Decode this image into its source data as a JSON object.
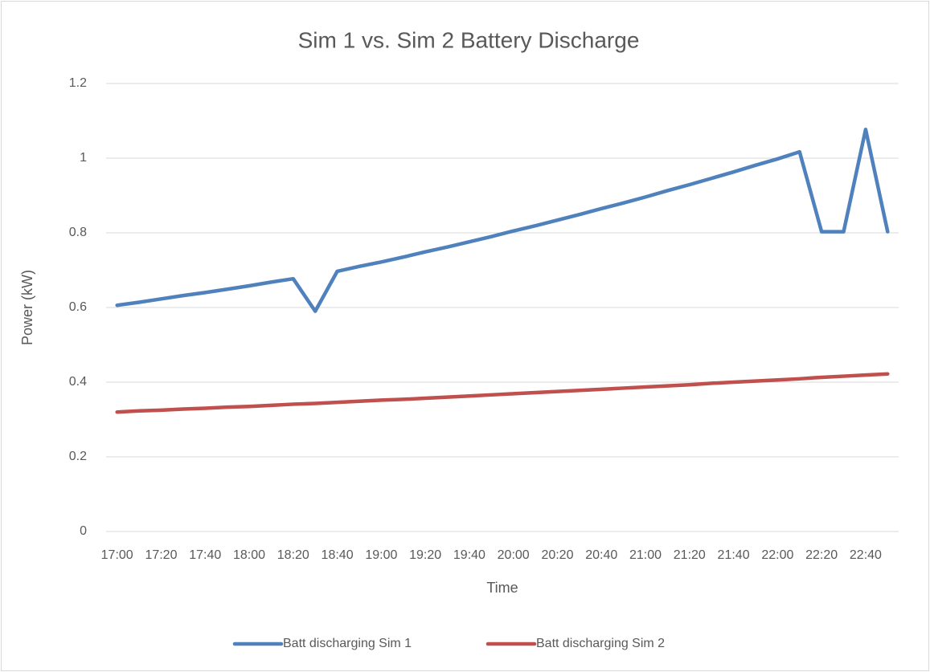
{
  "chart_data": {
    "type": "line",
    "title": "Sim 1 vs. Sim 2 Battery Discharge",
    "x_label": "Time",
    "y_label": "Power (kW)",
    "categories": [
      "17:00",
      null,
      "17:20",
      null,
      "17:40",
      null,
      "18:00",
      null,
      "18:20",
      null,
      "18:40",
      null,
      "19:00",
      null,
      "19:20",
      null,
      "19:40",
      null,
      "20:00",
      null,
      "20:20",
      null,
      "20:40",
      null,
      "21:00",
      null,
      "21:20",
      null,
      "21:40",
      null,
      "22:00",
      null,
      "22:20",
      null,
      "22:40",
      null
    ],
    "series": [
      {
        "name": "Batt discharging Sim 1",
        "color": "#4f81bd",
        "values": [
          0.606,
          0.614,
          0.623,
          0.632,
          0.64,
          0.649,
          0.658,
          0.668,
          0.677,
          0.59,
          0.697,
          0.71,
          0.722,
          0.735,
          0.749,
          0.762,
          0.776,
          0.79,
          0.805,
          0.819,
          0.834,
          0.849,
          0.865,
          0.88,
          0.896,
          0.913,
          0.929,
          0.946,
          0.963,
          0.981,
          0.998,
          1.017,
          0.803,
          0.803,
          1.077,
          0.803
        ]
      },
      {
        "name": "Batt discharging Sim 2",
        "color": "#c0504d",
        "values": [
          0.32,
          0.323,
          0.325,
          0.328,
          0.33,
          0.333,
          0.335,
          0.338,
          0.341,
          0.343,
          0.346,
          0.349,
          0.352,
          0.354,
          0.357,
          0.36,
          0.363,
          0.366,
          0.369,
          0.372,
          0.375,
          0.378,
          0.381,
          0.384,
          0.387,
          0.39,
          0.393,
          0.397,
          0.4,
          0.403,
          0.406,
          0.409,
          0.413,
          0.416,
          0.419,
          0.422
        ]
      }
    ],
    "ylim": [
      0,
      1.2
    ],
    "yticks": [
      0,
      0.2,
      0.4,
      0.6,
      0.8,
      1,
      1.2
    ],
    "grid": true,
    "legend": "bottom"
  }
}
